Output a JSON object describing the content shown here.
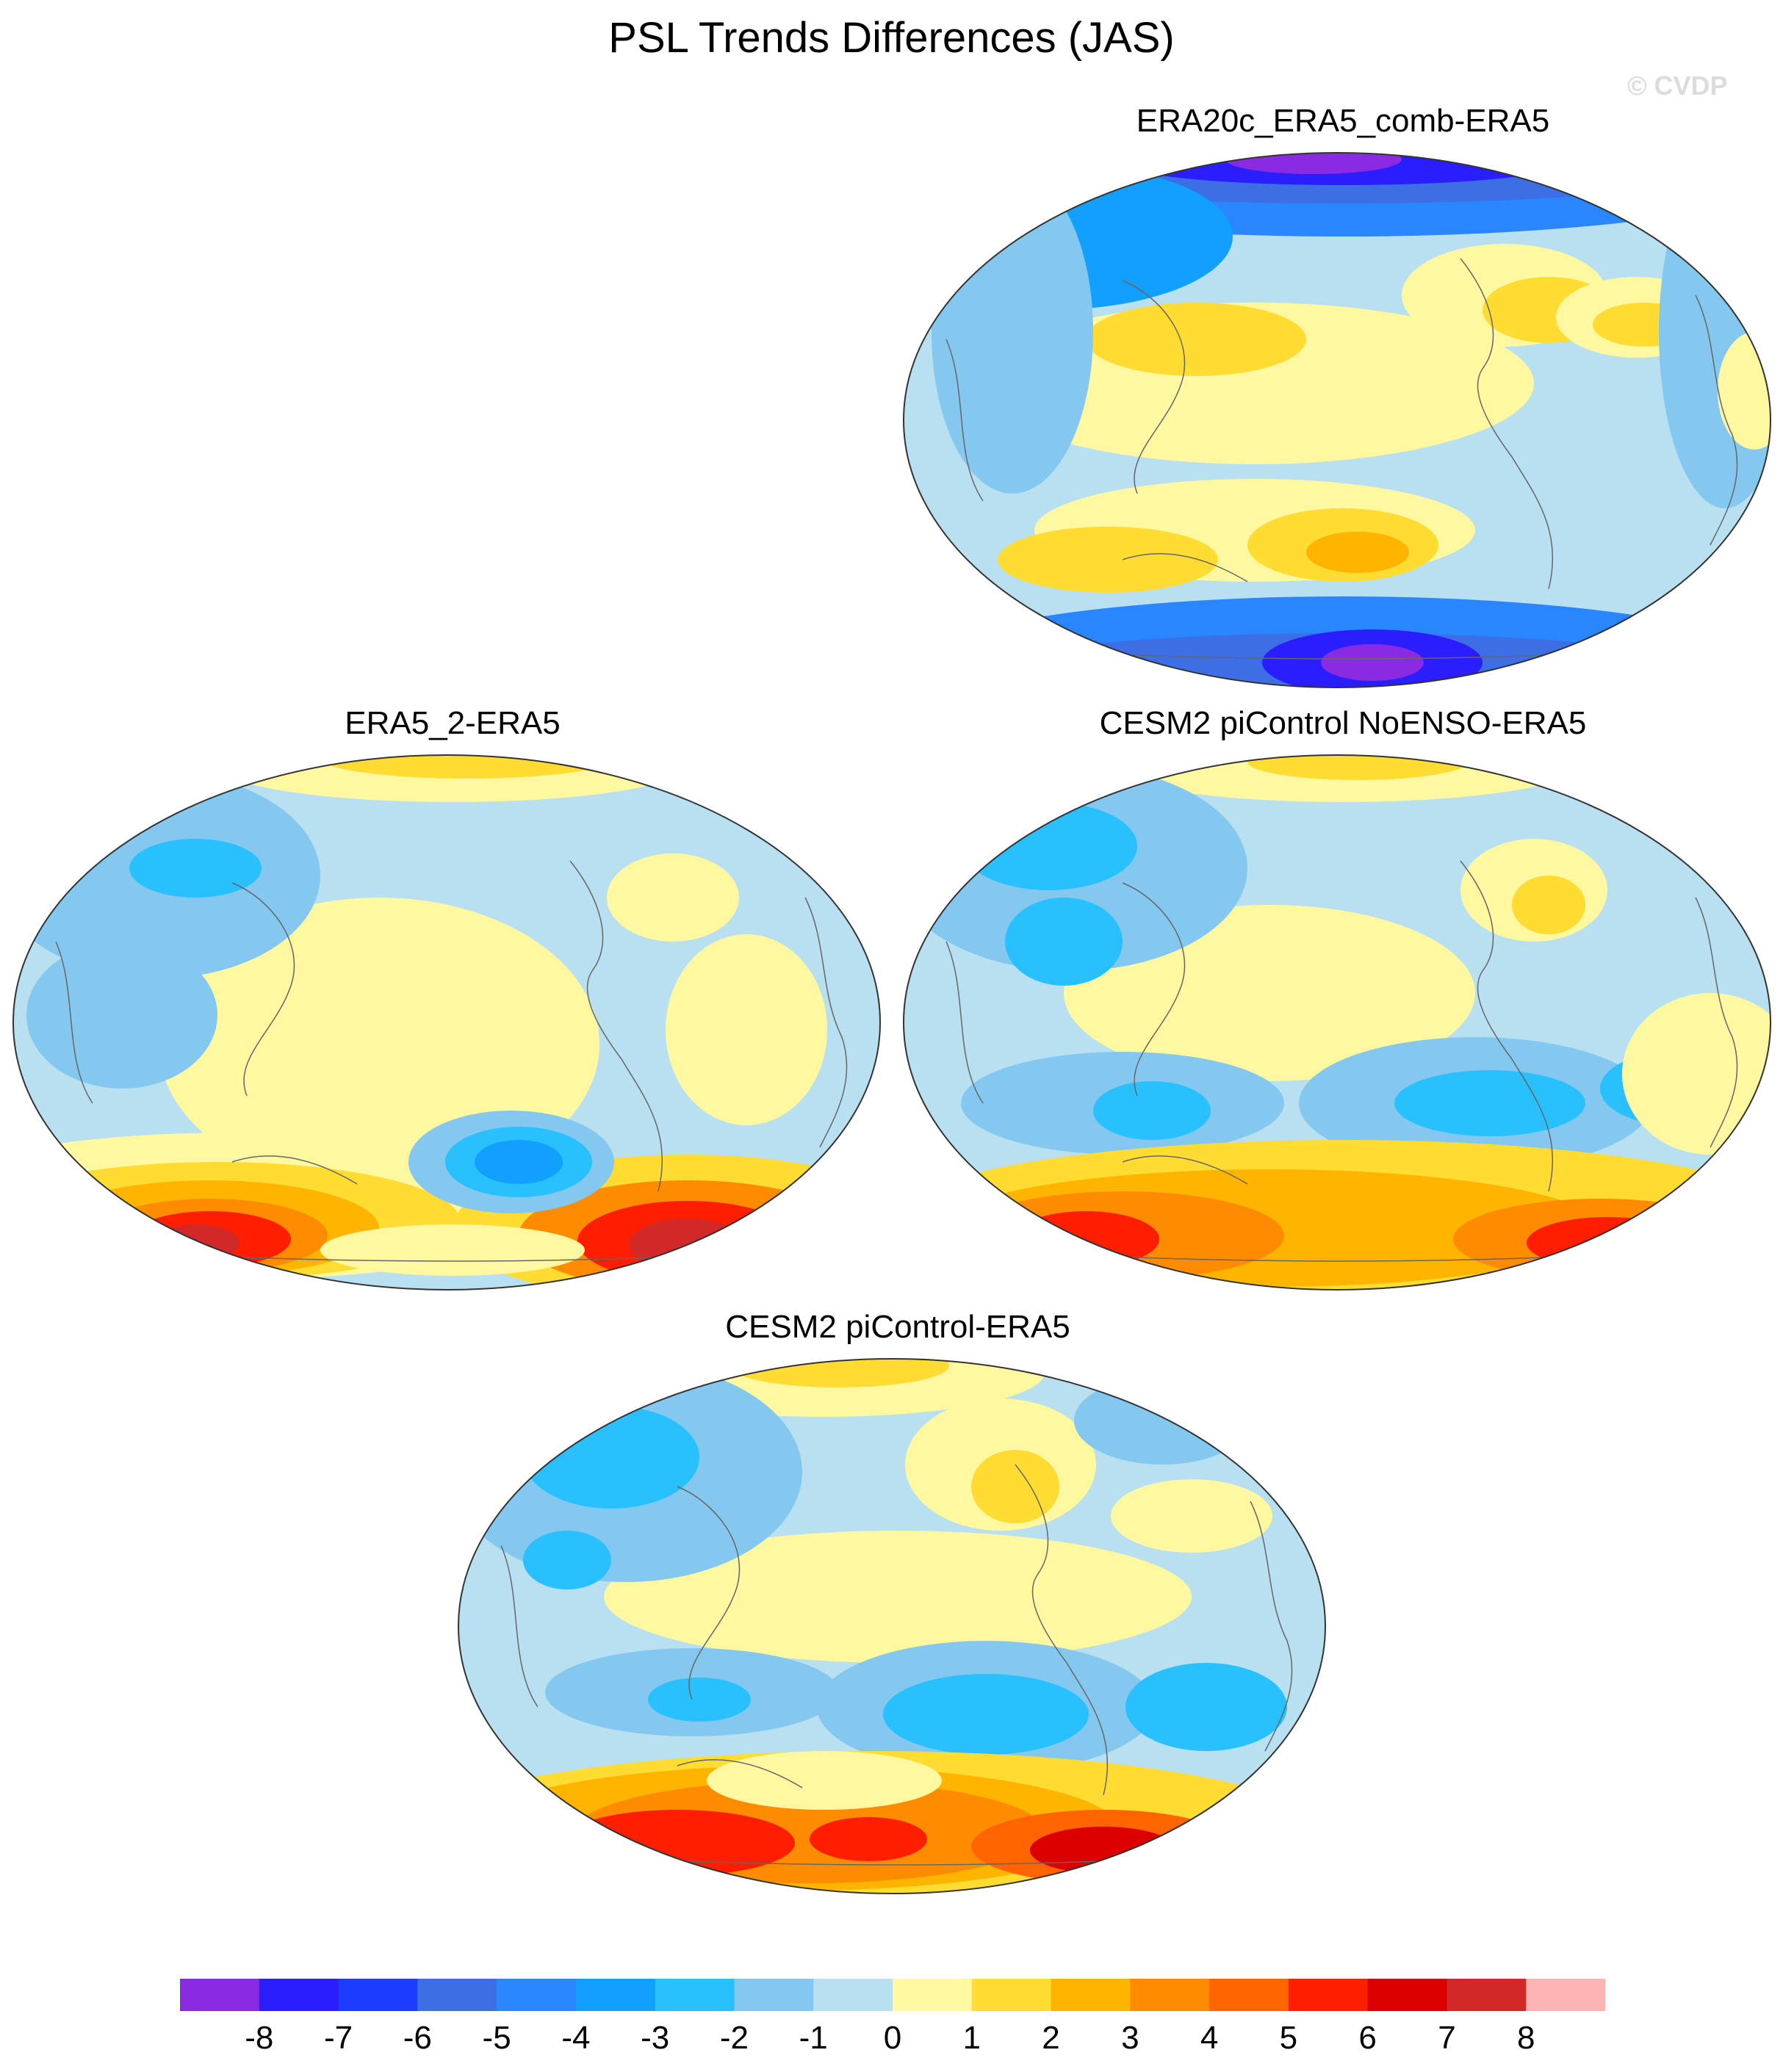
{
  "figure": {
    "title": "PSL Trends Differences (JAS)",
    "watermark": "© CVDP"
  },
  "chart_data": [
    {
      "type": "heatmap",
      "title": "ERA20c_ERA5_comb-ERA5",
      "projection": "Robinson-like world map, Pacific-centered",
      "features": [
        "strong negative (-4 to -8) over Arctic and Southern Ocean",
        "positive 1-3 bands over N. Pacific, N. Atlantic, S. Pacific",
        "noisy values over Himalaya, Andes, Antarctica"
      ]
    },
    {
      "type": "heatmap",
      "title": "ERA5_2-ERA5",
      "projection": "Robinson-like world map, Pacific-centered",
      "features": [
        "positive 3-7 over Southern Ocean south of Indian Ocean and Atlantic",
        "negative -3 to -4 southwest of South America",
        "mostly -1 to 1 elsewhere"
      ]
    },
    {
      "type": "heatmap",
      "title": "CESM2 piControl NoENSO-ERA5",
      "projection": "Robinson-like world map, Pacific-centered",
      "features": [
        "positive 2-6 band over Southern Ocean",
        "negative -2 to -3 over Eurasia and southern subtropics",
        "mostly -1 to 1 elsewhere"
      ]
    },
    {
      "type": "heatmap",
      "title": "CESM2 piControl-ERA5",
      "projection": "Robinson-like world map, Pacific-centered",
      "features": [
        "positive 3-6 band over Southern Ocean",
        "negative -2 to -3 over Eurasia and S. Pacific/S. Atlantic",
        "mostly -1 to 1 elsewhere"
      ]
    }
  ],
  "colorbar": {
    "labels": [
      "-8",
      "-7",
      "-6",
      "-5",
      "-4",
      "-3",
      "-2",
      "-1",
      "0",
      "1",
      "2",
      "3",
      "4",
      "5",
      "6",
      "7",
      "8"
    ],
    "colors": [
      "#8a2be2",
      "#2a1eff",
      "#1e3cff",
      "#3c6ee6",
      "#2a86ff",
      "#12a0ff",
      "#28c0ff",
      "#84c8f0",
      "#b8e0f0",
      "#fff8a0",
      "#ffdc32",
      "#ffb400",
      "#ff8c00",
      "#ff6400",
      "#ff1e00",
      "#dc0000",
      "#d22828",
      "#ffb4b4"
    ]
  }
}
